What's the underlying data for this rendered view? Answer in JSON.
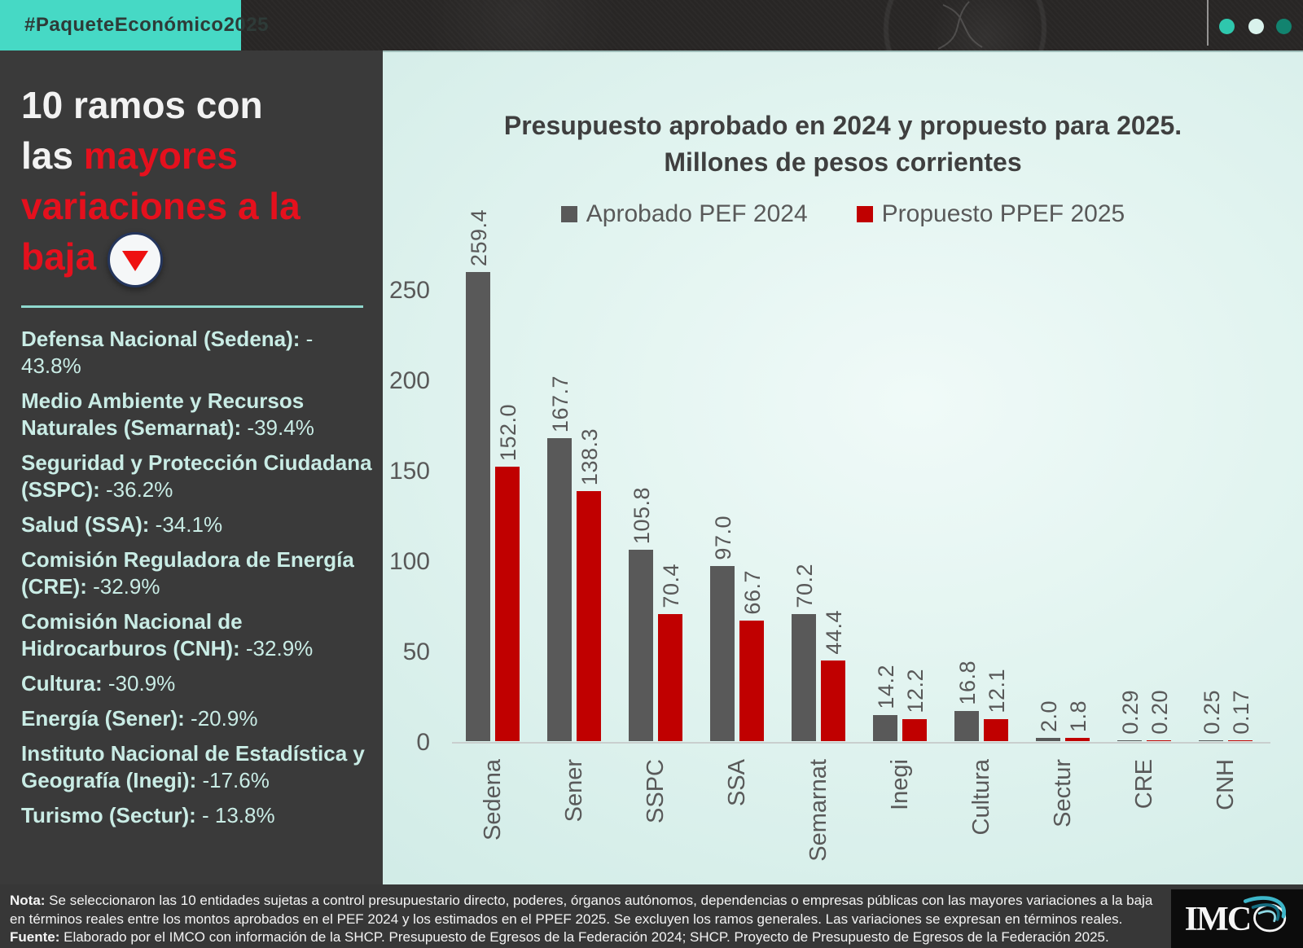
{
  "header": {
    "hashtag": "#PaqueteEconómico2025",
    "banner_color": "#46d9c5",
    "dot_colors": [
      "#2fc7ad",
      "#d9f2ec",
      "#12836f"
    ]
  },
  "sidebar": {
    "title_lines": [
      {
        "segments": [
          {
            "t": "10 ramos con",
            "c": "white"
          }
        ]
      },
      {
        "segments": [
          {
            "t": "las ",
            "c": "white"
          },
          {
            "t": "mayores",
            "c": "red"
          }
        ]
      },
      {
        "segments": [
          {
            "t": "variaciones a la",
            "c": "red"
          }
        ]
      },
      {
        "segments": [
          {
            "t": "baja",
            "c": "red"
          }
        ],
        "icon": "down-triangle"
      }
    ],
    "title_red_color": "#e5101d",
    "items": [
      {
        "name": "Defensa Nacional (Sedena):",
        "value": "- 43.8%"
      },
      {
        "name": "Medio Ambiente y Recursos Naturales (Semarnat):",
        "value": "-39.4%"
      },
      {
        "name": "Seguridad y Protección Ciudadana (SSPC):",
        "value": "-36.2%"
      },
      {
        "name": "Salud (SSA):",
        "value": "-34.1%"
      },
      {
        "name": "Comisión Reguladora de Energía (CRE):",
        "value": "-32.9%"
      },
      {
        "name": "Comisión Nacional de Hidrocarburos (CNH):",
        "value": "-32.9%"
      },
      {
        "name": "Cultura:",
        "value": "-30.9%"
      },
      {
        "name": "Energía (Sener):",
        "value": "-20.9%"
      },
      {
        "name": "Instituto Nacional de Estadística y Geografía (Inegi):",
        "value": "-17.6%"
      },
      {
        "name": "Turismo (Sectur):",
        "value": "- 13.8%"
      }
    ]
  },
  "chart_data": {
    "type": "bar",
    "title": "Presupuesto aprobado en 2024 y propuesto para 2025.",
    "subtitle": "Millones de pesos corrientes",
    "categories": [
      "Sedena",
      "Sener",
      "SSPC",
      "SSA",
      "Semarnat",
      "Inegi",
      "Cultura",
      "Sectur",
      "CRE",
      "CNH"
    ],
    "series": [
      {
        "name": "Aprobado PEF 2024",
        "color": "#595959",
        "values": [
          259.4,
          167.7,
          105.8,
          97.0,
          70.2,
          14.2,
          16.8,
          2.0,
          0.29,
          0.25
        ],
        "labels": [
          "259.4",
          "167.7",
          "105.8",
          "97.0",
          "70.2",
          "14.2",
          "16.8",
          "2.0",
          "0.29",
          "0.25"
        ]
      },
      {
        "name": "Propuesto PPEF 2025",
        "color": "#c00000",
        "values": [
          152.0,
          138.3,
          70.4,
          66.7,
          44.4,
          12.2,
          12.1,
          1.8,
          0.2,
          0.17
        ],
        "labels": [
          "152.0",
          "138.3",
          "70.4",
          "66.7",
          "44.4",
          "12.2",
          "12.1",
          "1.8",
          "0.20",
          "0.17"
        ]
      }
    ],
    "y_ticks": [
      0,
      50,
      100,
      150,
      200,
      250
    ],
    "ylim": [
      0,
      250
    ],
    "grid": false,
    "legend_position": "top",
    "value_label_rotation": -90,
    "category_label_rotation": -90
  },
  "footer": {
    "note_label": "Nota:",
    "note_text": " Se seleccionaron las 10 entidades sujetas a control presupuestario directo, poderes, órganos autónomos, dependencias o empresas públicas con las mayores variaciones a la baja en términos reales entre los montos aprobados en el PEF 2024 y los estimados en el PPEF 2025. Se excluyen los ramos generales. Las variaciones se expresan en términos reales.",
    "source_label": "Fuente:",
    "source_text": " Elaborado por el IMCO con información de la SHCP. Presupuesto de Egresos de la Federación 2024; SHCP. Proyecto de Presupuesto de Egresos de la Federación 2025.",
    "logo_text": "IMCO"
  }
}
